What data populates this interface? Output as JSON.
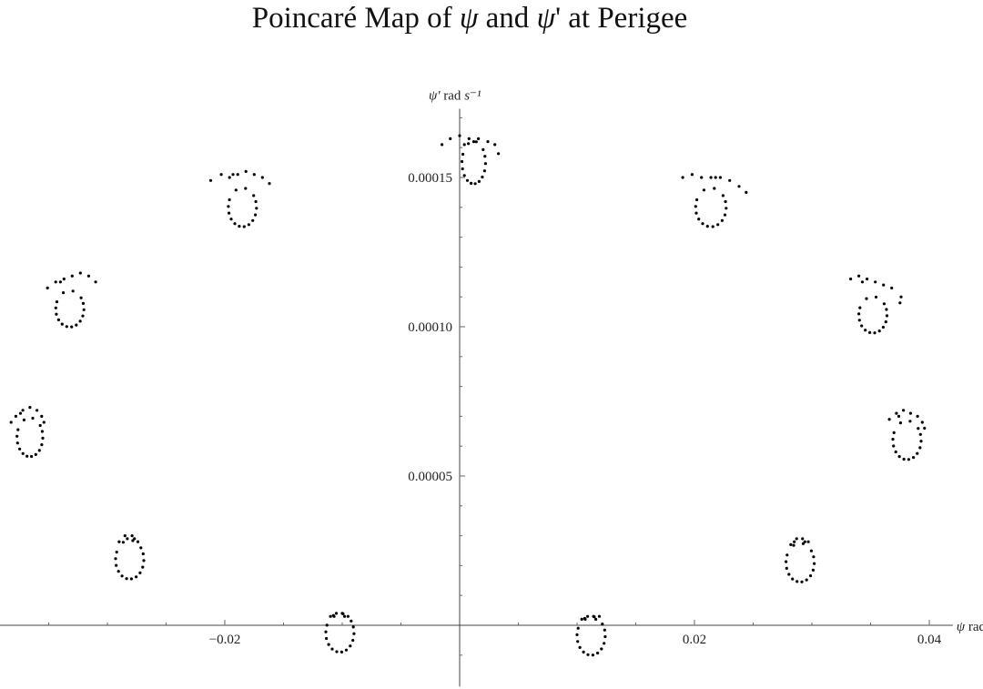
{
  "title": {
    "prefix": "Poincaré Map of ",
    "sym1": "ψ",
    "middle": " and ",
    "sym2": "ψ",
    "suffix": "' at Perigee"
  },
  "chart_data": {
    "type": "scatter",
    "title": "Poincaré Map of ψ and ψ' at Perigee",
    "xlabel": "ψ rad",
    "ylabel": "ψ' rad s⁻¹",
    "xlim": [
      -0.0395,
      0.042
    ],
    "ylim": [
      -2.05e-05,
      0.000173
    ],
    "x_ticks": [
      {
        "value": -0.02,
        "label": "−0.02"
      },
      {
        "value": 0.02,
        "label": "0.02"
      },
      {
        "value": 0.04,
        "label": "0.04"
      }
    ],
    "y_ticks": [
      {
        "value": 5e-05,
        "label": "0.00005"
      },
      {
        "value": 0.0001,
        "label": "0.00010"
      },
      {
        "value": 0.00015,
        "label": "0.00015"
      }
    ],
    "grid": false,
    "marker_color": "#000000",
    "clusters": [
      {
        "cx": 0.0012,
        "cy": 0.000155,
        "rx": 0.001,
        "ry": 6.8e-06,
        "tail": [
          [
            -0.0015,
            0.000161
          ],
          [
            -0.0008,
            0.000163
          ],
          [
            0.0,
            0.000164
          ],
          [
            0.0008,
            0.000163
          ],
          [
            0.0016,
            0.000163
          ],
          [
            0.0024,
            0.000162
          ],
          [
            0.003,
            0.000161
          ],
          [
            0.0033,
            0.000158
          ],
          [
            0.0004,
            0.000161
          ],
          [
            0.0012,
            0.000162
          ]
        ]
      },
      {
        "cx": -0.0185,
        "cy": 0.00014,
        "rx": 0.0012,
        "ry": 6.2e-06,
        "tail": [
          [
            -0.0212,
            0.000149
          ],
          [
            -0.0203,
            0.000151
          ],
          [
            -0.0196,
            0.00015
          ],
          [
            -0.0189,
            0.000151
          ],
          [
            -0.0182,
            0.000152
          ],
          [
            -0.0175,
            0.000151
          ],
          [
            -0.0168,
            0.00015
          ],
          [
            -0.0162,
            0.000148
          ],
          [
            -0.0193,
            0.000151
          ]
        ]
      },
      {
        "cx": 0.0214,
        "cy": 0.00014,
        "rx": 0.0013,
        "ry": 6.2e-06,
        "tail": [
          [
            0.019,
            0.00015
          ],
          [
            0.0198,
            0.000151
          ],
          [
            0.0206,
            0.00015
          ],
          [
            0.0214,
            0.00015
          ],
          [
            0.0222,
            0.00015
          ],
          [
            0.023,
            0.000149
          ],
          [
            0.0238,
            0.000147
          ],
          [
            0.0244,
            0.000145
          ],
          [
            0.0218,
            0.00015
          ]
        ]
      },
      {
        "cx": -0.0332,
        "cy": 0.000106,
        "rx": 0.0012,
        "ry": 5.8e-06,
        "tail": [
          [
            -0.0351,
            0.000113
          ],
          [
            -0.0344,
            0.000115
          ],
          [
            -0.0337,
            0.000116
          ],
          [
            -0.033,
            0.000117
          ],
          [
            -0.0323,
            0.000118
          ],
          [
            -0.0316,
            0.000117
          ],
          [
            -0.031,
            0.000115
          ],
          [
            -0.034,
            0.000115
          ]
        ]
      },
      {
        "cx": 0.0352,
        "cy": 0.000104,
        "rx": 0.0012,
        "ry": 5.8e-06,
        "tail": [
          [
            0.0333,
            0.000116
          ],
          [
            0.034,
            0.000117
          ],
          [
            0.0347,
            0.000116
          ],
          [
            0.0354,
            0.000115
          ],
          [
            0.0361,
            0.000114
          ],
          [
            0.0368,
            0.000113
          ],
          [
            0.0376,
            0.00011
          ],
          [
            0.0375,
            0.000108
          ],
          [
            0.0343,
            0.000115
          ]
        ]
      },
      {
        "cx": -0.0366,
        "cy": 6.3e-05,
        "rx": 0.0011,
        "ry": 6.2e-06,
        "tail": [
          [
            -0.0382,
            6.8e-05
          ],
          [
            -0.0378,
            7e-05
          ],
          [
            -0.0372,
            7.2e-05
          ],
          [
            -0.0366,
            7.3e-05
          ],
          [
            -0.036,
            7.2e-05
          ],
          [
            -0.0356,
            7e-05
          ],
          [
            -0.0354,
            6.8e-05
          ],
          [
            -0.0374,
            7.1e-05
          ]
        ]
      },
      {
        "cx": 0.0381,
        "cy": 6.2e-05,
        "rx": 0.0012,
        "ry": 6.2e-06,
        "tail": [
          [
            0.0366,
            6.9e-05
          ],
          [
            0.0372,
            7.1e-05
          ],
          [
            0.0378,
            7.2e-05
          ],
          [
            0.0384,
            7.1e-05
          ],
          [
            0.039,
            7e-05
          ],
          [
            0.0394,
            6.8e-05
          ],
          [
            0.0396,
            6.6e-05
          ],
          [
            0.0374,
            7e-05
          ]
        ]
      },
      {
        "cx": -0.0281,
        "cy": 2.2e-05,
        "rx": 0.0012,
        "ry": 6.2e-06,
        "tail": [
          [
            -0.029,
            2.8e-05
          ],
          [
            -0.0285,
            3e-05
          ],
          [
            -0.0279,
            3e-05
          ],
          [
            -0.0274,
            2.8e-05
          ],
          [
            -0.0283,
            2.9e-05
          ],
          [
            -0.0277,
            2.9e-05
          ]
        ]
      },
      {
        "cx": 0.029,
        "cy": 2.1e-05,
        "rx": 0.0012,
        "ry": 6.2e-06,
        "tail": [
          [
            0.0282,
            2.7e-05
          ],
          [
            0.0287,
            2.9e-05
          ],
          [
            0.0292,
            2.9e-05
          ],
          [
            0.0297,
            2.8e-05
          ],
          [
            0.0285,
            2.8e-05
          ],
          [
            0.0294,
            2.8e-05
          ]
        ]
      },
      {
        "cx": -0.0102,
        "cy": -2.5e-06,
        "rx": 0.0012,
        "ry": 6.2e-06,
        "tail": [
          [
            -0.011,
            3e-06
          ],
          [
            -0.0105,
            4e-06
          ],
          [
            -0.01,
            4e-06
          ],
          [
            -0.0095,
            3e-06
          ],
          [
            -0.0107,
            3e-06
          ],
          [
            -0.0098,
            3e-06
          ]
        ]
      },
      {
        "cx": 0.0112,
        "cy": -3.5e-06,
        "rx": 0.0012,
        "ry": 6.2e-06,
        "tail": [
          [
            0.0104,
            2e-06
          ],
          [
            0.0109,
            3e-06
          ],
          [
            0.0114,
            3e-06
          ],
          [
            0.0119,
            3e-06
          ],
          [
            0.0107,
            2e-06
          ],
          [
            0.0116,
            2e-06
          ]
        ]
      }
    ]
  }
}
